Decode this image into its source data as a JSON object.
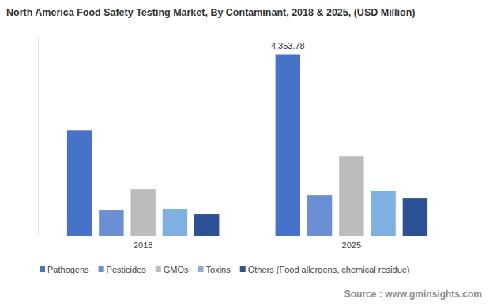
{
  "chart_data": {
    "type": "bar",
    "title": "North America Food Safety Testing Market, By Contaminant, 2018 & 2025, (USD Million)",
    "source": "Source : www.gminsights.com",
    "categories": [
      "2018",
      "2025"
    ],
    "series": [
      {
        "name": "Pathogens",
        "color": "#4673c9",
        "values": [
          2518,
          4353.78
        ],
        "value_labels": [
          null,
          "4,353.78"
        ]
      },
      {
        "name": "Pesticides",
        "color": "#6a8fd4",
        "values": [
          606,
          965
        ]
      },
      {
        "name": "GMOs",
        "color": "#bcbcbc",
        "values": [
          1117,
          1912
        ]
      },
      {
        "name": "Toxins",
        "color": "#7fb0e2",
        "values": [
          644,
          1079
        ]
      },
      {
        "name": "Others (Food allergens, chemical residue)",
        "color": "#2d5196",
        "values": [
          511,
          890
        ]
      }
    ],
    "ylim": [
      0,
      4800
    ],
    "tick_labels": "x",
    "grid": false,
    "legend": "bottom"
  }
}
